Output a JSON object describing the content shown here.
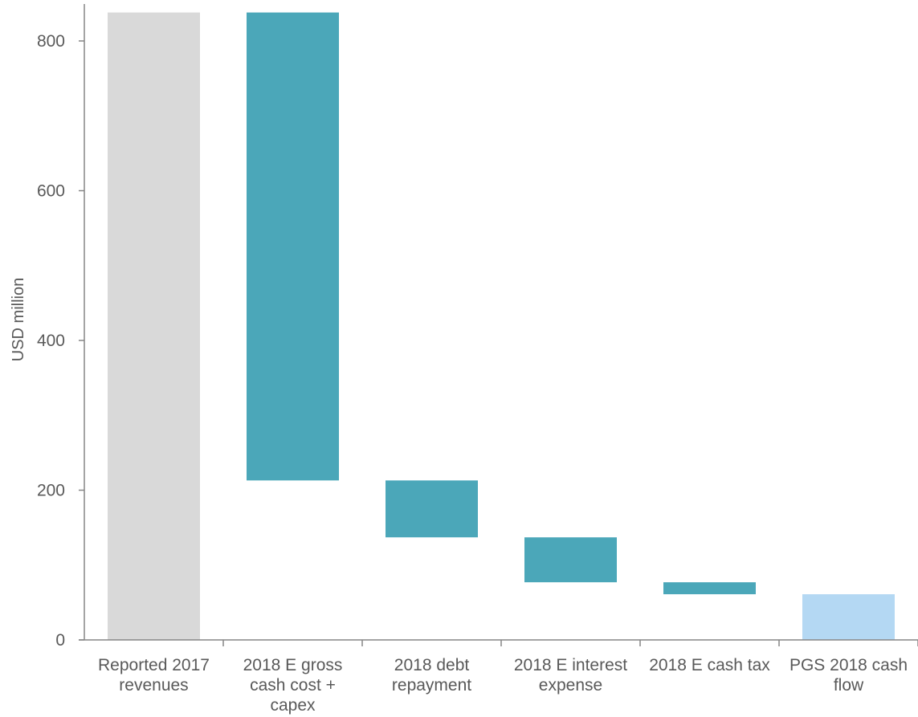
{
  "chart_data": {
    "type": "bar",
    "subtype": "waterfall",
    "title": "",
    "ylabel": "USD million",
    "xlabel": "",
    "ylim": [
      0,
      850
    ],
    "yticks": [
      0,
      200,
      400,
      600,
      800
    ],
    "grid": false,
    "legend": "none",
    "categories": [
      [
        "Reported 2017",
        "revenues"
      ],
      [
        "2018 E gross",
        "cash cost +",
        "capex"
      ],
      [
        "2018 debt",
        "repayment"
      ],
      [
        "2018 E interest",
        "expense"
      ],
      [
        "2018 E cash tax"
      ],
      [
        "PGS 2018 cash",
        "flow"
      ]
    ],
    "bars": [
      {
        "base": 0,
        "top": 838,
        "kind": "total"
      },
      {
        "base": 213,
        "top": 838,
        "kind": "decrease"
      },
      {
        "base": 137,
        "top": 213,
        "kind": "decrease"
      },
      {
        "base": 77,
        "top": 137,
        "kind": "decrease"
      },
      {
        "base": 61,
        "top": 77,
        "kind": "decrease"
      },
      {
        "base": 0,
        "top": 61,
        "kind": "result"
      }
    ],
    "colors": {
      "total": "#d9d9d9",
      "decrease": "#4ba7b9",
      "result": "#b4d8f3",
      "axis": "#868686",
      "text": "#595959"
    }
  }
}
